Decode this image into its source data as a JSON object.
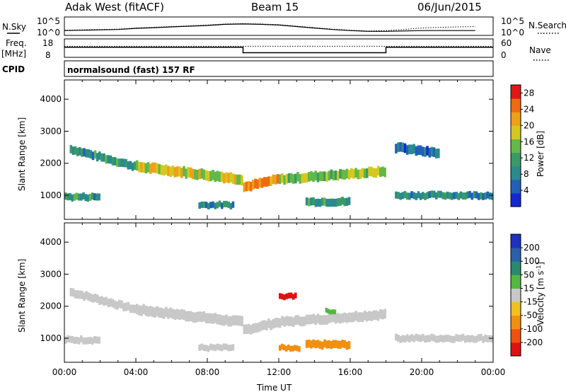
{
  "header": {
    "station": "Adak West (fitACF)",
    "beam": "Beam 15",
    "date": "06/Jun/2015"
  },
  "panels": {
    "sky_label": "N.Sky",
    "search_label": "N.Search",
    "freq_label": "Freq.",
    "freq_unit": "[MHz]",
    "nave_label": "Nave",
    "cpid_label": "CPID",
    "cpid_value": "normalsound (fast) 157 RF",
    "sky_ticks": [
      "10^5",
      "10^0"
    ],
    "freq_ticks": [
      "18",
      "8"
    ],
    "nave_ticks": [
      "60",
      "0"
    ]
  },
  "chart_data": [
    {
      "type": "line",
      "name": "noise",
      "series": [
        {
          "name": "N.Sky",
          "style": "solid",
          "values": [
            1.3,
            1.4,
            1.5,
            1.6,
            1.9,
            2.1,
            2.3,
            2.5,
            2.7,
            3.0,
            3.1,
            3.0,
            2.8,
            2.4,
            2.0,
            1.6,
            1.3,
            1.1,
            1.1,
            1.2,
            1.3,
            1.3,
            1.3,
            1.3
          ]
        },
        {
          "name": "N.Search",
          "style": "dotted",
          "values": [
            1.4,
            1.5,
            1.6,
            1.7,
            2.0,
            2.2,
            2.4,
            2.6,
            2.8,
            3.1,
            3.2,
            3.1,
            2.9,
            2.5,
            2.1,
            1.7,
            1.4,
            1.2,
            1.3,
            1.6,
            2.0,
            2.2,
            2.3,
            2.4
          ]
        }
      ],
      "x": [
        0,
        1,
        2,
        3,
        4,
        5,
        6,
        7,
        8,
        9,
        10,
        11,
        12,
        13,
        14,
        15,
        16,
        17,
        18,
        19,
        20,
        21,
        22,
        23
      ],
      "ylim": [
        0,
        5
      ],
      "xlim": [
        0,
        24
      ]
    },
    {
      "type": "line",
      "name": "frequency",
      "series": [
        {
          "name": "Freq.",
          "style": "solid",
          "x": [
            0,
            10,
            10,
            18,
            18,
            24
          ],
          "values": [
            13.5,
            13.5,
            10.5,
            10.5,
            13.5,
            13.5
          ]
        },
        {
          "name": "Nave",
          "style": "dotted",
          "x": [
            0,
            24
          ],
          "values": [
            14,
            14
          ]
        }
      ],
      "ylim": [
        8,
        18
      ],
      "xlim": [
        0,
        24
      ]
    },
    {
      "type": "heatmap",
      "name": "power",
      "xlabel": "",
      "ylabel": "Slant Range [km]",
      "xlim": [
        0,
        24
      ],
      "ylim": [
        250,
        4600
      ],
      "yticks": [
        1000,
        2000,
        3000,
        4000
      ],
      "colorbar": {
        "label": "Power [dB]",
        "ticks": [
          4,
          8,
          12,
          16,
          20,
          24,
          28
        ],
        "colors": [
          "#1428d2",
          "#2060b8",
          "#2a8a8e",
          "#3a9a66",
          "#62b848",
          "#d4c820",
          "#f0a018",
          "#f06a10",
          "#e01818"
        ],
        "range": [
          0,
          30
        ]
      },
      "bands": [
        {
          "t0": 0.3,
          "t1": 4.0,
          "r_start": 2450,
          "r_end": 1900,
          "width": 260,
          "value": 10
        },
        {
          "t0": 4.0,
          "t1": 10.0,
          "r_start": 1900,
          "r_end": 1500,
          "width": 320,
          "value": 18
        },
        {
          "t0": 10.0,
          "t1": 12.0,
          "r_start": 1250,
          "r_end": 1500,
          "width": 300,
          "value": 22
        },
        {
          "t0": 12.0,
          "t1": 18.0,
          "r_start": 1500,
          "r_end": 1750,
          "width": 300,
          "value": 16
        },
        {
          "t0": 0.0,
          "t1": 2.0,
          "r_start": 950,
          "r_end": 950,
          "width": 220,
          "value": 10
        },
        {
          "t0": 7.5,
          "t1": 9.5,
          "r_start": 700,
          "r_end": 700,
          "width": 200,
          "value": 9
        },
        {
          "t0": 13.5,
          "t1": 16.0,
          "r_start": 800,
          "r_end": 800,
          "width": 250,
          "value": 10
        },
        {
          "t0": 18.5,
          "t1": 24.0,
          "r_start": 1000,
          "r_end": 1000,
          "width": 220,
          "value": 9
        },
        {
          "t0": 18.5,
          "t1": 21.0,
          "r_start": 2500,
          "r_end": 2300,
          "width": 300,
          "value": 6
        }
      ]
    },
    {
      "type": "heatmap",
      "name": "velocity",
      "xlabel": "Time UT",
      "ylabel": "Slant Range [km]",
      "xlim": [
        0,
        24
      ],
      "ylim": [
        250,
        4600
      ],
      "xticks": [
        "00:00",
        "04:00",
        "08:00",
        "12:00",
        "16:00",
        "20:00",
        "00:00"
      ],
      "yticks": [
        1000,
        2000,
        3000,
        4000
      ],
      "colorbar": {
        "label": "Velocity [m s",
        "label_sup": "-1",
        "label_end": "]",
        "ticks": [
          "200",
          "100",
          "50",
          "15",
          "-15",
          "-50",
          "-100",
          "-200"
        ],
        "colors": [
          "#2030c0",
          "#2a60a8",
          "#2a8a70",
          "#54b840",
          "#c8c8c8",
          "#f0c020",
          "#f09010",
          "#f05010",
          "#e01010"
        ]
      },
      "bands": [
        {
          "t0": 0.3,
          "t1": 4.0,
          "r_start": 2450,
          "r_end": 1900,
          "width": 260,
          "value": 0
        },
        {
          "t0": 4.0,
          "t1": 10.0,
          "r_start": 1900,
          "r_end": 1500,
          "width": 320,
          "value": 0
        },
        {
          "t0": 10.0,
          "t1": 12.0,
          "r_start": 1250,
          "r_end": 1500,
          "width": 300,
          "value": 0
        },
        {
          "t0": 12.0,
          "t1": 18.0,
          "r_start": 1500,
          "r_end": 1750,
          "width": 300,
          "value": 0
        },
        {
          "t0": 0.0,
          "t1": 2.0,
          "r_start": 950,
          "r_end": 950,
          "width": 220,
          "value": 0
        },
        {
          "t0": 7.5,
          "t1": 9.5,
          "r_start": 700,
          "r_end": 700,
          "width": 200,
          "value": 0
        },
        {
          "t0": 13.5,
          "t1": 16.0,
          "r_start": 800,
          "r_end": 800,
          "width": 250,
          "value": -80
        },
        {
          "t0": 12.0,
          "t1": 13.2,
          "r_start": 700,
          "r_end": 700,
          "width": 180,
          "value": -70
        },
        {
          "t0": 18.5,
          "t1": 24.0,
          "r_start": 1000,
          "r_end": 1000,
          "width": 220,
          "value": 0
        },
        {
          "t0": 12.0,
          "t1": 13.0,
          "r_start": 2300,
          "r_end": 2300,
          "width": 180,
          "value": -210
        },
        {
          "t0": 14.6,
          "t1": 15.2,
          "r_start": 1850,
          "r_end": 1850,
          "width": 150,
          "value": 40
        }
      ]
    }
  ]
}
